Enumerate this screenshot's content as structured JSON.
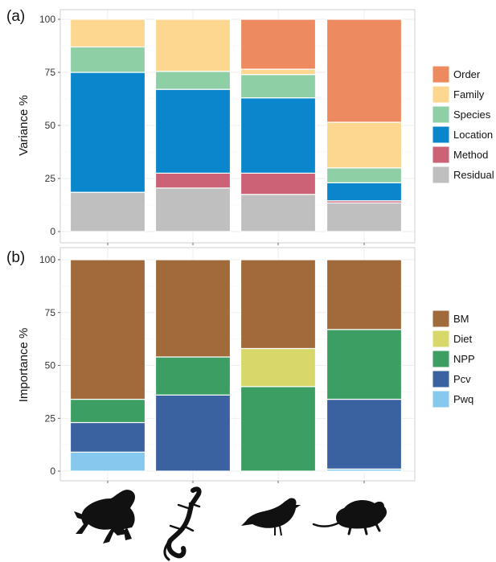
{
  "colors": {
    "Order": "#EE8A5F",
    "Family": "#FDD78F",
    "Species": "#8ECFA6",
    "Location": "#0A87CC",
    "Method": "#CC6275",
    "Residual": "#BFBFBF",
    "BM": "#A06A3B",
    "Diet": "#D8D86A",
    "NPP": "#3C9E62",
    "Pcv": "#3A62A0",
    "Pwq": "#86C8EE"
  },
  "icons": [
    "frog-icon",
    "lizard-icon",
    "bird-icon",
    "mouse-icon"
  ],
  "chart_data": [
    {
      "panel": "(a)",
      "type": "bar",
      "stacked": true,
      "ylabel": "Variance %",
      "ylim": [
        0,
        100
      ],
      "yticks": [
        "0",
        "25",
        "50",
        "75",
        "100"
      ],
      "legend_position": "right",
      "categories": [
        "frog",
        "lizard",
        "bird",
        "mouse"
      ],
      "series": [
        {
          "name": "Order",
          "values": [
            0,
            0,
            23.5,
            48.5
          ]
        },
        {
          "name": "Family",
          "values": [
            13,
            24.5,
            2.5,
            21.5
          ]
        },
        {
          "name": "Species",
          "values": [
            12,
            8.5,
            11,
            7
          ]
        },
        {
          "name": "Location",
          "values": [
            56.5,
            39.5,
            35.5,
            8.5
          ]
        },
        {
          "name": "Method",
          "values": [
            0,
            7,
            10,
            1
          ]
        },
        {
          "name": "Residual",
          "values": [
            18.5,
            20.5,
            17.5,
            13.5
          ]
        }
      ]
    },
    {
      "panel": "(b)",
      "type": "bar",
      "stacked": true,
      "ylabel": "Importance %",
      "ylim": [
        0,
        100
      ],
      "yticks": [
        "0",
        "25",
        "50",
        "75",
        "100"
      ],
      "legend_position": "right",
      "categories": [
        "frog",
        "lizard",
        "bird",
        "mouse"
      ],
      "series": [
        {
          "name": "BM",
          "values": [
            66,
            46,
            42,
            33
          ]
        },
        {
          "name": "Diet",
          "values": [
            0,
            0,
            18,
            0
          ]
        },
        {
          "name": "NPP",
          "values": [
            11,
            18,
            40,
            33
          ]
        },
        {
          "name": "Pcv",
          "values": [
            14,
            36,
            0,
            33
          ]
        },
        {
          "name": "Pwq",
          "values": [
            9,
            0,
            0,
            1
          ]
        }
      ]
    }
  ]
}
